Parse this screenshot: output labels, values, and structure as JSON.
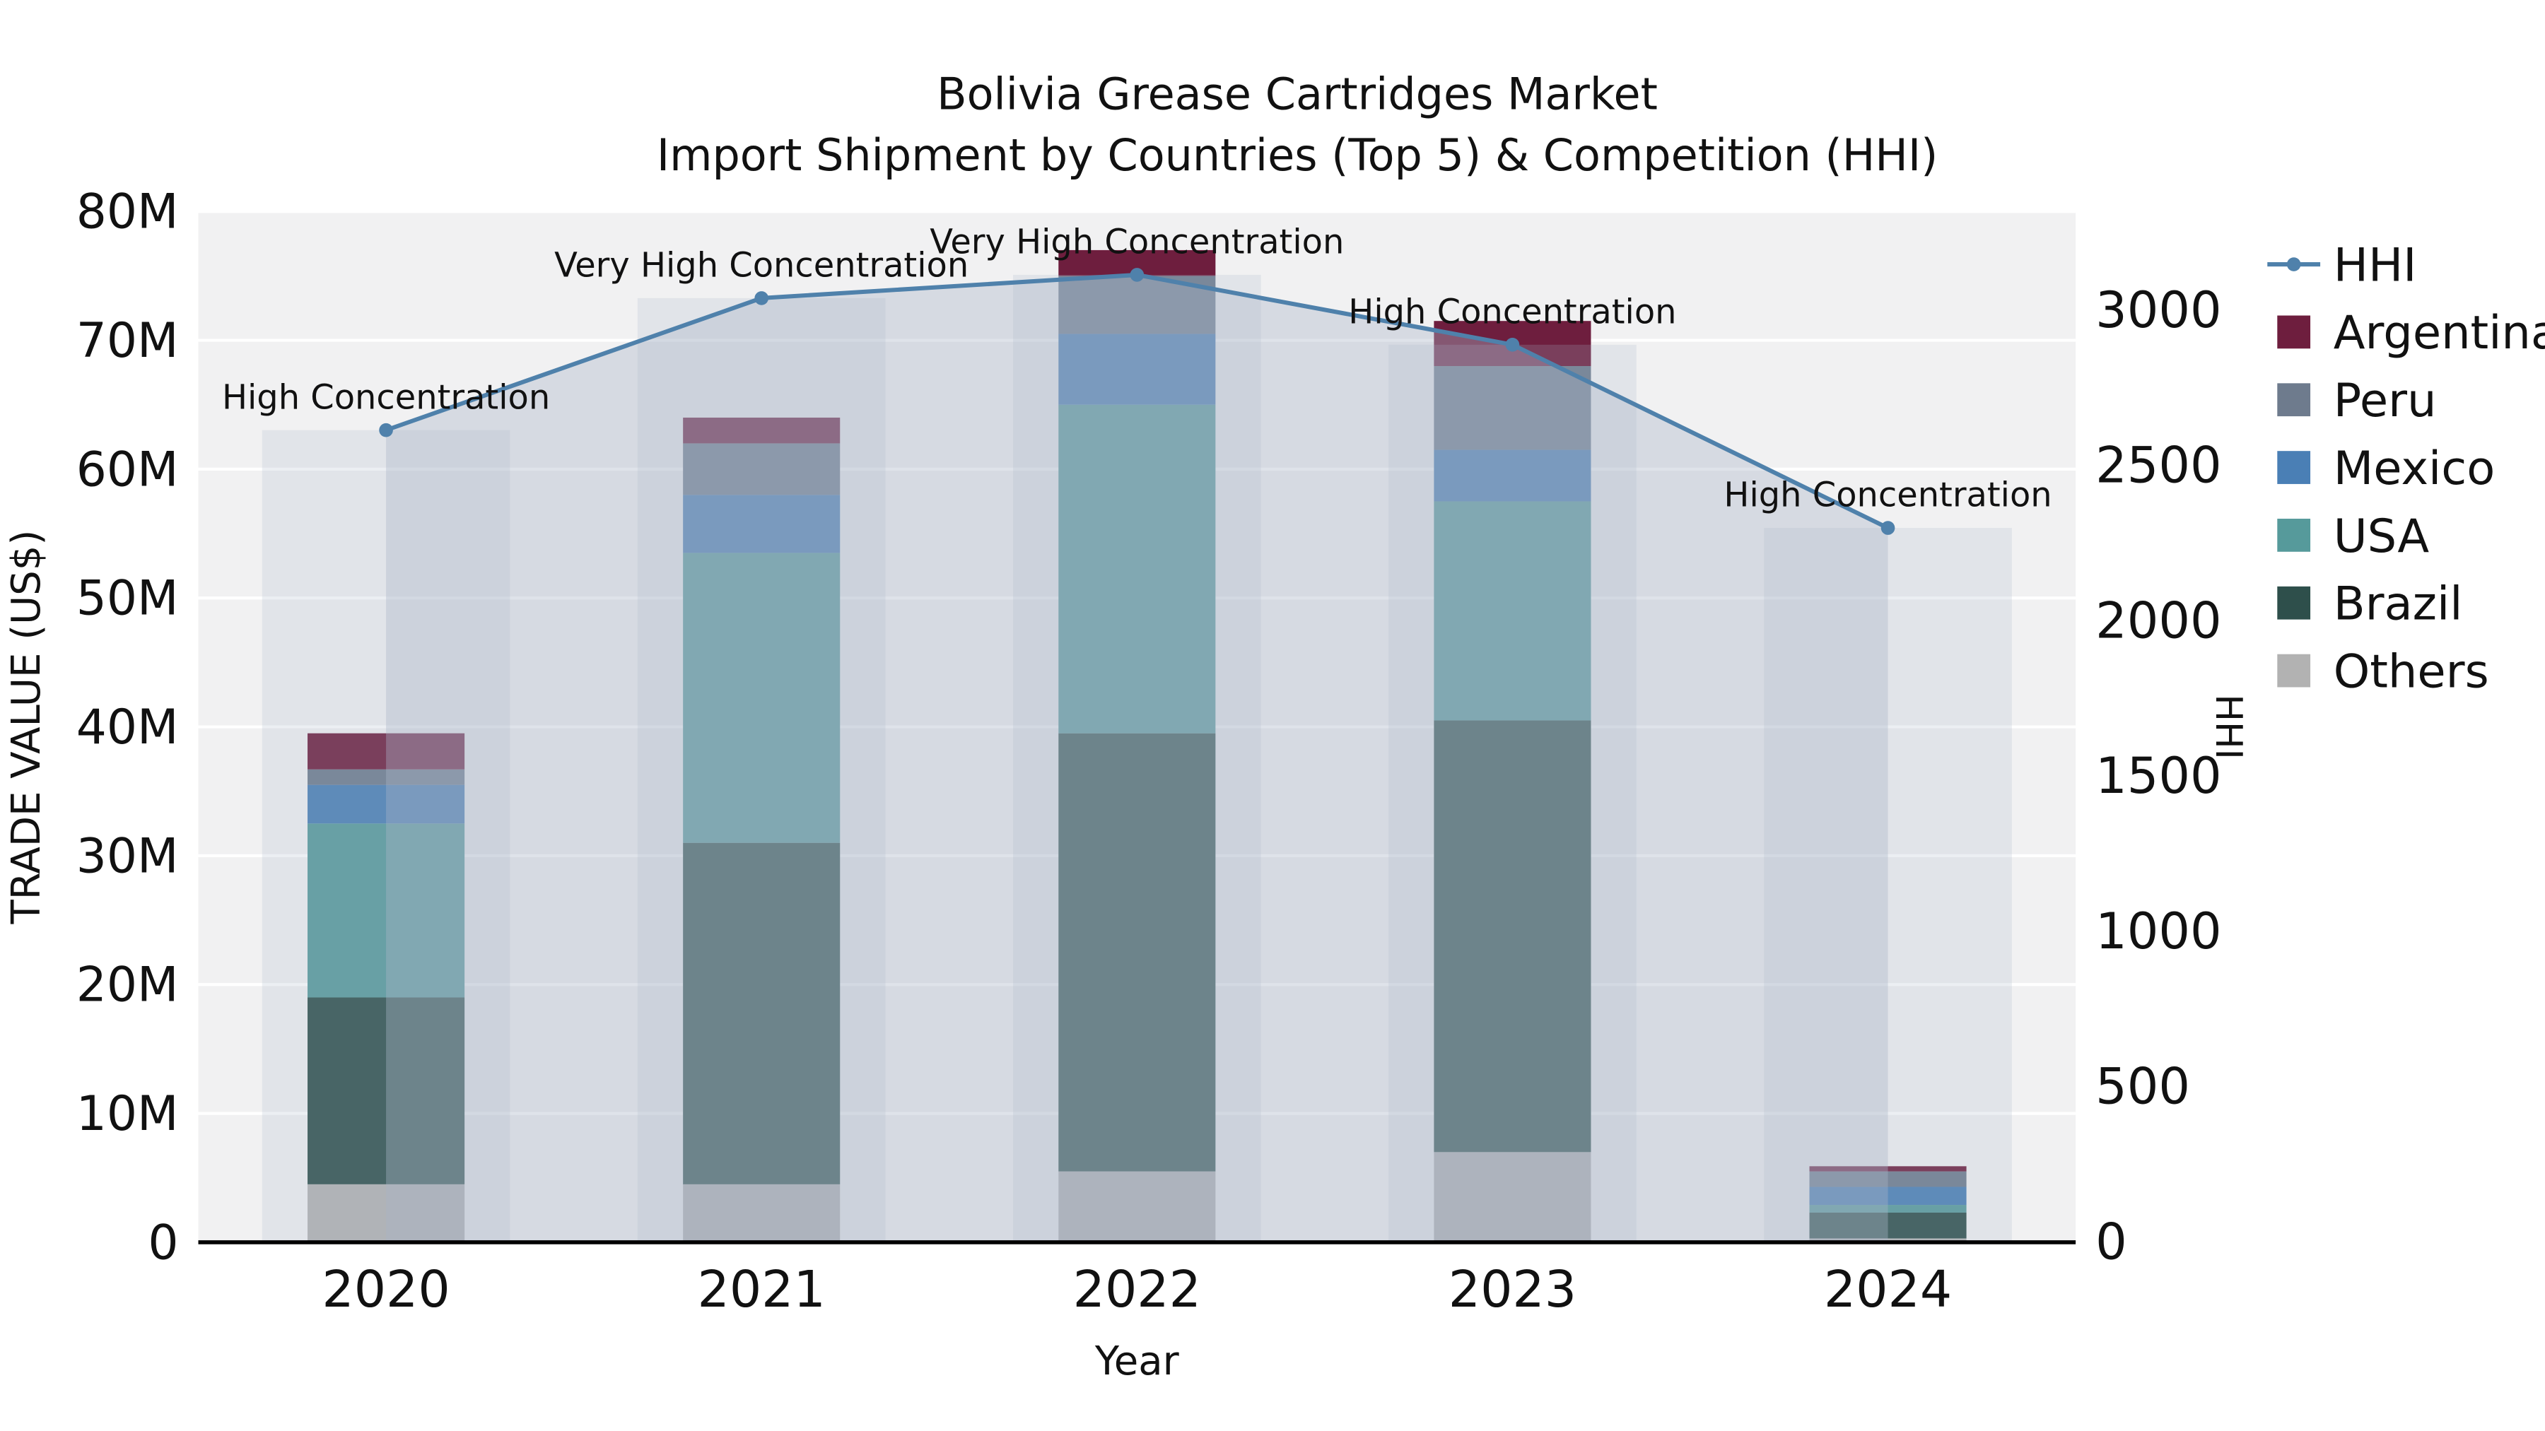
{
  "figure": {
    "title": "Bolivia Grease Cartridges Market",
    "subtitle": "Import Shipment by Countries (Top 5) & Competition (HHI)"
  },
  "chart_data": {
    "type": "bar",
    "title": "Bolivia Grease Cartridges Market",
    "subtitle": "Import Shipment by Countries (Top 5) & Competition (HHI)",
    "xlabel": "Year",
    "ylabel_left": "TRADE VALUE (US$)",
    "ylabel_right": "HHI",
    "categories": [
      "2020",
      "2021",
      "2022",
      "2023",
      "2024"
    ],
    "unit": "million USD",
    "stack_order": [
      "Others",
      "Brazil",
      "USA",
      "Mexico",
      "Peru",
      "Argentina"
    ],
    "series": [
      {
        "name": "Argentina",
        "color": "#6e1e3e",
        "values_musd": [
          2.8,
          2.0,
          2.0,
          3.5,
          0.4
        ]
      },
      {
        "name": "Peru",
        "color": "#6e7b8d",
        "values_musd": [
          1.2,
          4.0,
          4.5,
          6.5,
          1.2
        ]
      },
      {
        "name": "Mexico",
        "color": "#4a7fb5",
        "values_musd": [
          3.0,
          4.5,
          5.5,
          4.0,
          1.4
        ]
      },
      {
        "name": "USA",
        "color": "#569a9b",
        "values_musd": [
          13.5,
          22.5,
          25.5,
          17.0,
          0.6
        ]
      },
      {
        "name": "Brazil",
        "color": "#2e4f4b",
        "values_musd": [
          14.5,
          26.5,
          34.0,
          33.5,
          2.0
        ]
      },
      {
        "name": "Others",
        "color": "#b2b2b2",
        "values_musd": [
          4.5,
          4.5,
          5.5,
          7.0,
          0.3
        ]
      }
    ],
    "bar_totals_musd": [
      39.5,
      64.0,
      77.0,
      71.5,
      5.9
    ],
    "hhi": {
      "name": "HHI",
      "color": "#4f81ab",
      "area_color": "#aab6c8",
      "values": [
        2615,
        3040,
        3115,
        2890,
        2300
      ],
      "annotations": [
        "High Concentration",
        "Very High Concentration",
        "Very High Concentration",
        "High Concentration",
        "High Concentration"
      ]
    },
    "left_axis": {
      "ticks": [
        "0",
        "10M",
        "20M",
        "30M",
        "40M",
        "50M",
        "60M",
        "70M",
        "80M"
      ],
      "max_musd": 80,
      "ylim": [
        0,
        80000000
      ]
    },
    "right_axis": {
      "ticks": [
        "0",
        "500",
        "1000",
        "1500",
        "2000",
        "2500",
        "3000"
      ],
      "tick_max": 3000
    },
    "legend": [
      "HHI",
      "Argentina",
      "Peru",
      "Mexico",
      "USA",
      "Brazil",
      "Others"
    ],
    "legend_position": "right",
    "grid": "horizontal-white-on-gray"
  }
}
